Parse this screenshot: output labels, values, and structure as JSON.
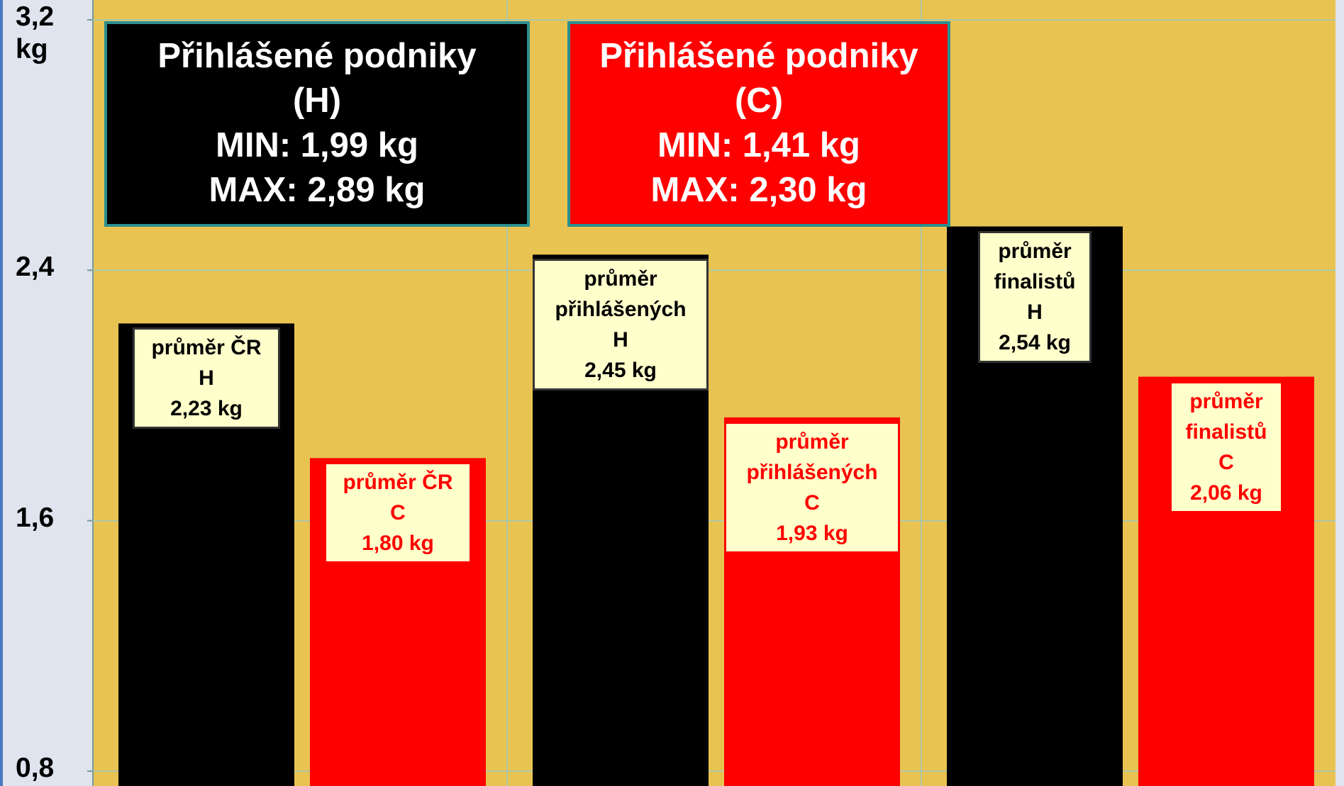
{
  "chart_data": {
    "type": "bar",
    "y_label": "kg",
    "categories": [
      "průměr ČR",
      "průměr přihlášených",
      "průměr finalistů"
    ],
    "series": [
      {
        "name": "H",
        "color": "#000000",
        "values": [
          2.23,
          2.45,
          2.54
        ],
        "value_labels": [
          "2,23 kg",
          "2,45 kg",
          "2,54 kg"
        ]
      },
      {
        "name": "C",
        "color": "#ff0000",
        "values": [
          1.8,
          1.93,
          2.06
        ],
        "value_labels": [
          "1,80 kg",
          "1,93 kg",
          "2,06 kg"
        ]
      }
    ],
    "ylim": [
      0.8,
      3.2
    ],
    "yticks": [
      {
        "value": 0.8,
        "label": "0,8"
      },
      {
        "value": 1.6,
        "label": "1,6"
      },
      {
        "value": 2.4,
        "label": "2,4"
      },
      {
        "value": 3.2,
        "label": "3,2"
      }
    ],
    "grid": true,
    "annotations": [
      {
        "color": "#000000",
        "lines": [
          "Přihlášené podniky",
          "(H)",
          "MIN: 1,99 kg",
          "MAX: 2,89 kg"
        ]
      },
      {
        "color": "#ff0000",
        "lines": [
          "Přihlášené podniky",
          "(C)",
          "MIN: 1,41 kg",
          "MAX: 2,30 kg"
        ]
      }
    ]
  }
}
